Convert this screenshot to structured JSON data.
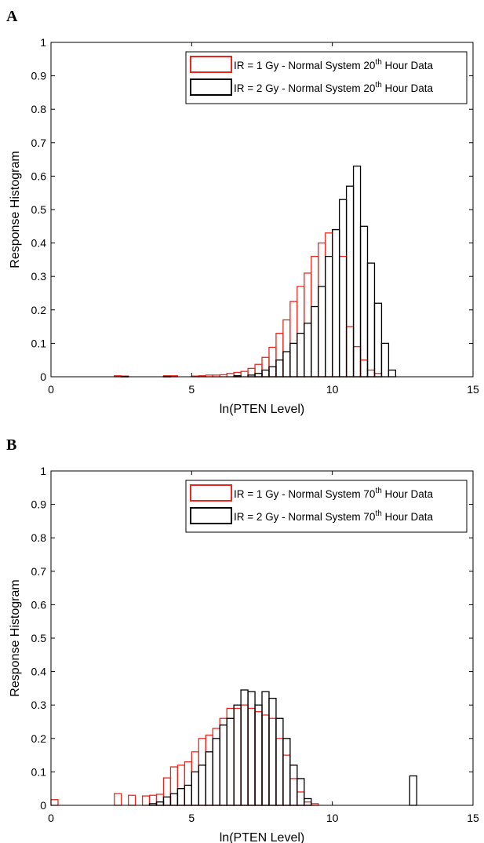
{
  "chart_data": [
    {
      "type": "bar",
      "panel": "A",
      "xlabel": "ln(PTEN Level)",
      "ylabel": "Response Histogram",
      "xlim": [
        0,
        15
      ],
      "ylim": [
        0,
        1
      ],
      "xticks": [
        "0",
        "5",
        "10",
        "15"
      ],
      "yticks": [
        "0",
        "0.1",
        "0.2",
        "0.3",
        "0.4",
        "0.5",
        "0.6",
        "0.7",
        "0.8",
        "0.9",
        "1"
      ],
      "grid": false,
      "legend_position": "top-right",
      "bin_width": 0.25,
      "series": [
        {
          "name": "IR = 1 Gy - Normal System 20th Hour Data",
          "legend_main": "IR = 1 Gy - Normal System 20",
          "legend_sup": "th",
          "legend_tail": " Hour Data",
          "color": "#e8281e",
          "x": [
            2.25,
            2.5,
            4.0,
            4.25,
            5.0,
            5.25,
            5.5,
            5.75,
            6.0,
            6.25,
            6.5,
            6.75,
            7.0,
            7.25,
            7.5,
            7.75,
            8.0,
            8.25,
            8.5,
            8.75,
            9.0,
            9.25,
            9.5,
            9.75,
            10.0,
            10.25,
            10.5,
            10.75,
            11.0,
            11.25,
            11.5
          ],
          "values": [
            0.003,
            0.002,
            0.003,
            0.003,
            0.002,
            0.003,
            0.005,
            0.005,
            0.006,
            0.01,
            0.013,
            0.016,
            0.025,
            0.037,
            0.058,
            0.088,
            0.13,
            0.17,
            0.225,
            0.27,
            0.31,
            0.36,
            0.4,
            0.43,
            0.44,
            0.36,
            0.15,
            0.09,
            0.05,
            0.02,
            0.01
          ]
        },
        {
          "name": "IR = 2 Gy - Normal System 20th Hour Data",
          "legend_main": "IR = 2 Gy - Normal System 20",
          "legend_sup": "th",
          "legend_tail": " Hour Data",
          "color": "#000000",
          "x": [
            2.5,
            4.0,
            6.5,
            7.0,
            7.25,
            7.5,
            7.75,
            8.0,
            8.25,
            8.5,
            8.75,
            9.0,
            9.25,
            9.5,
            9.75,
            10.0,
            10.25,
            10.5,
            10.75,
            11.0,
            11.25,
            11.5,
            11.75,
            12.0
          ],
          "values": [
            0.001,
            0.001,
            0.003,
            0.005,
            0.01,
            0.02,
            0.03,
            0.05,
            0.075,
            0.1,
            0.13,
            0.16,
            0.21,
            0.27,
            0.36,
            0.44,
            0.53,
            0.57,
            0.63,
            0.45,
            0.34,
            0.22,
            0.1,
            0.02
          ]
        }
      ]
    },
    {
      "type": "bar",
      "panel": "B",
      "xlabel": "ln(PTEN Level)",
      "ylabel": "Response Histogram",
      "xlim": [
        0,
        15
      ],
      "ylim": [
        0,
        1
      ],
      "xticks": [
        "0",
        "5",
        "10",
        "15"
      ],
      "yticks": [
        "0",
        "0.1",
        "0.2",
        "0.3",
        "0.4",
        "0.5",
        "0.6",
        "0.7",
        "0.8",
        "0.9",
        "1"
      ],
      "grid": false,
      "legend_position": "top-right",
      "bin_width": 0.25,
      "series": [
        {
          "name": "IR = 1 Gy - Normal System 70th Hour Data",
          "legend_main": "IR = 1 Gy - Normal System 70",
          "legend_sup": "th",
          "legend_tail": " Hour Data",
          "color": "#e8281e",
          "x": [
            0.0,
            2.25,
            2.75,
            3.25,
            3.5,
            3.75,
            4.0,
            4.25,
            4.5,
            4.75,
            5.0,
            5.25,
            5.5,
            5.75,
            6.0,
            6.25,
            6.5,
            6.75,
            7.0,
            7.25,
            7.5,
            7.75,
            8.0,
            8.25,
            8.5,
            8.75,
            9.0,
            9.25
          ],
          "values": [
            0.017,
            0.035,
            0.03,
            0.028,
            0.03,
            0.033,
            0.082,
            0.115,
            0.12,
            0.13,
            0.16,
            0.2,
            0.21,
            0.23,
            0.26,
            0.29,
            0.29,
            0.3,
            0.29,
            0.28,
            0.27,
            0.26,
            0.2,
            0.15,
            0.08,
            0.04,
            0.01,
            0.005
          ]
        },
        {
          "name": "IR = 2 Gy - Normal System 70th Hour Data",
          "legend_main": "IR = 2 Gy - Normal System 70",
          "legend_sup": "th",
          "legend_tail": " Hour Data",
          "color": "#000000",
          "x": [
            3.5,
            3.75,
            4.0,
            4.25,
            4.5,
            4.75,
            5.0,
            5.25,
            5.5,
            5.75,
            6.0,
            6.25,
            6.5,
            6.75,
            7.0,
            7.25,
            7.5,
            7.75,
            8.0,
            8.25,
            8.5,
            8.75,
            9.0,
            12.75
          ],
          "values": [
            0.005,
            0.01,
            0.025,
            0.035,
            0.05,
            0.06,
            0.1,
            0.12,
            0.16,
            0.2,
            0.24,
            0.26,
            0.3,
            0.345,
            0.34,
            0.3,
            0.34,
            0.32,
            0.26,
            0.2,
            0.12,
            0.08,
            0.02,
            0.088
          ]
        }
      ]
    }
  ]
}
